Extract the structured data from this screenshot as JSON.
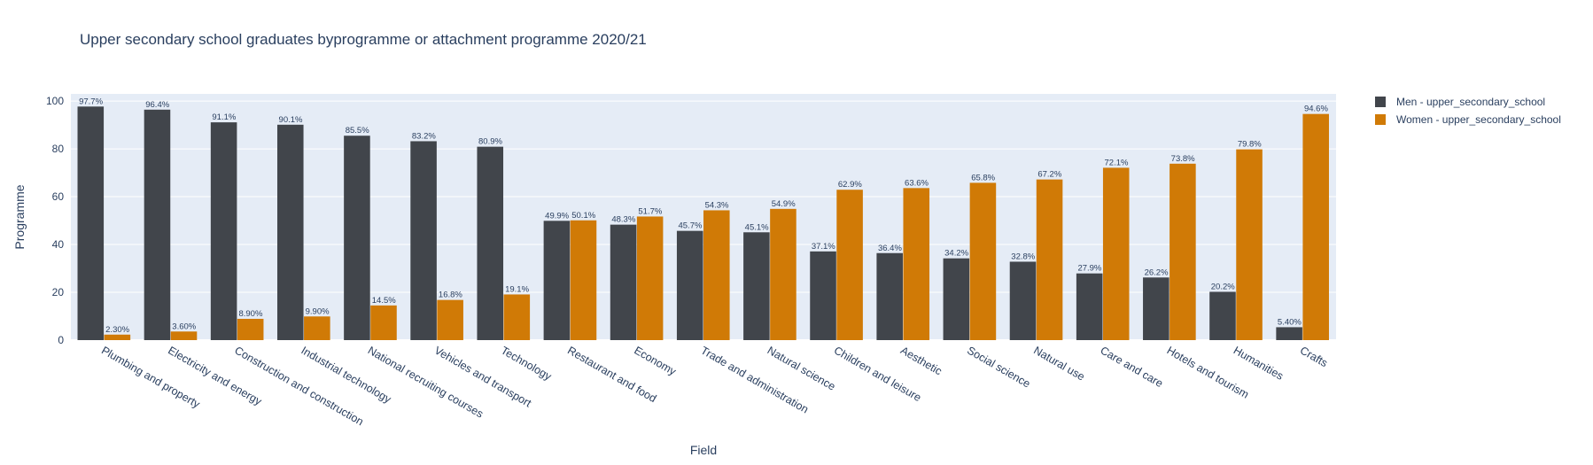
{
  "chart_data": {
    "type": "bar",
    "title": "Upper secondary school graduates byprogramme or attachment programme 2020/21",
    "xlabel": "Field",
    "ylabel": "Programme",
    "ylim": [
      0,
      103
    ],
    "yticks": [
      0,
      20,
      40,
      60,
      80,
      100
    ],
    "grid": true,
    "legend_position": "top-right",
    "categories": [
      "Plumbing and property",
      "Electricity and energy",
      "Construction and construction",
      "Industrial technology",
      "National recruiting courses",
      "Vehicles and transport",
      "Technology",
      "Restaurant and food",
      "Economy",
      "Trade and administration",
      "Natural science",
      "Children and leisure",
      "Aesthetic",
      "Social science",
      "Natural use",
      "Care and care",
      "Hotels and tourism",
      "Humanities",
      "Crafts"
    ],
    "series": [
      {
        "name": "Men - upper_secondary_school",
        "color": "#41454b",
        "values": [
          97.7,
          96.4,
          91.1,
          90.1,
          85.5,
          83.2,
          80.9,
          49.9,
          48.3,
          45.7,
          45.1,
          37.1,
          36.4,
          34.2,
          32.8,
          27.9,
          26.2,
          20.2,
          5.4
        ],
        "labels": [
          "97.7%",
          "96.4%",
          "91.1%",
          "90.1%",
          "85.5%",
          "83.2%",
          "80.9%",
          "49.9%",
          "48.3%",
          "45.7%",
          "45.1%",
          "37.1%",
          "36.4%",
          "34.2%",
          "32.8%",
          "27.9%",
          "26.2%",
          "20.2%",
          "5.40%"
        ]
      },
      {
        "name": "Women - upper_secondary_school",
        "color": "#d07a06",
        "values": [
          2.3,
          3.6,
          8.9,
          9.9,
          14.5,
          16.8,
          19.1,
          50.1,
          51.7,
          54.3,
          54.9,
          62.9,
          63.6,
          65.8,
          67.2,
          72.1,
          73.8,
          79.8,
          94.6
        ],
        "labels": [
          "2.30%",
          "3.60%",
          "8.90%",
          "9.90%",
          "14.5%",
          "16.8%",
          "19.1%",
          "50.1%",
          "51.7%",
          "54.3%",
          "54.9%",
          "62.9%",
          "63.6%",
          "65.8%",
          "67.2%",
          "72.1%",
          "73.8%",
          "79.8%",
          "94.6%"
        ]
      }
    ]
  }
}
